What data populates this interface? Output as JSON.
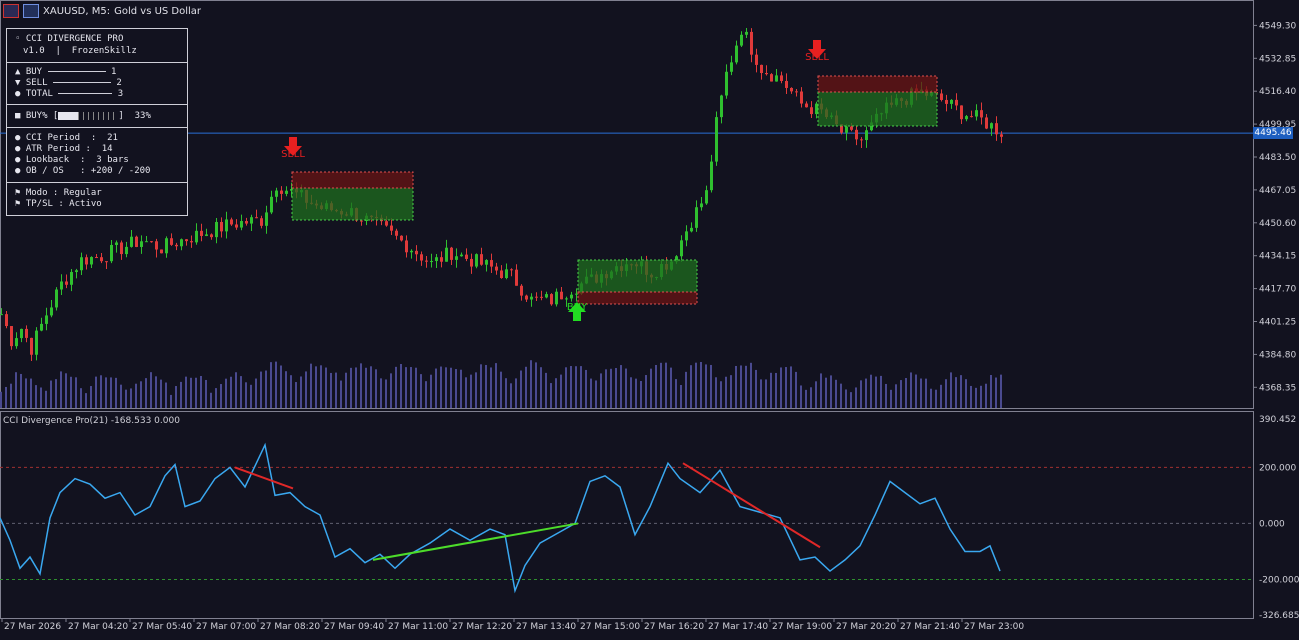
{
  "window": {
    "symbol": "XAUUSD, M5:",
    "description": "Gold vs US Dollar"
  },
  "panel": {
    "name": "CCI DIVERGENCE PRO",
    "version": "v1.0  |  FrozenSkillz",
    "buy_label": "▲ BUY",
    "buy_count": "1",
    "sell_label": "▼ SELL",
    "sell_count": "2",
    "total_label": "● TOTAL",
    "total_count": "3",
    "buy_pct_label": "■ BUY%",
    "buy_pct_value": "33%",
    "buy_pct": 0.33,
    "cci_period_label": "● CCI Period",
    "cci_period": "21",
    "atr_period_label": "● ATR Period",
    "atr_period": "14",
    "lookback_label": "● Lookback",
    "lookback": "3 bars",
    "obos_label": "● OB / OS",
    "obos": "+200 / -200",
    "modo": "⚑ Modo : Regular",
    "tpsl": "⚑ TP/SL : Activo"
  },
  "price_axis": {
    "labels": [
      "4549.30",
      "4532.85",
      "4516.40",
      "4499.95",
      "4483.50",
      "4467.05",
      "4450.60",
      "4434.15",
      "4417.70",
      "4401.25",
      "4384.80",
      "4368.35"
    ],
    "current": "4495.46"
  },
  "indicator": {
    "title": "CCI Divergence Pro(21) -168.533 0.000",
    "axis_labels": [
      "390.452",
      "200.000",
      "0.000",
      "-200.000",
      "-326.685"
    ]
  },
  "time_axis": {
    "labels": [
      "27 Mar 2026",
      "27 Mar 04:20",
      "27 Mar 05:40",
      "27 Mar 07:00",
      "27 Mar 08:20",
      "27 Mar 09:40",
      "27 Mar 11:00",
      "27 Mar 12:20",
      "27 Mar 13:40",
      "27 Mar 15:00",
      "27 Mar 16:20",
      "27 Mar 17:40",
      "27 Mar 19:00",
      "27 Mar 20:20",
      "27 Mar 21:40",
      "27 Mar 23:00"
    ]
  },
  "signals": [
    {
      "type": "SELL",
      "label": "SELL"
    },
    {
      "type": "BUY",
      "label": "BUY"
    },
    {
      "type": "SELL",
      "label": "SELL"
    }
  ],
  "colors": {
    "background": "#12121f",
    "bull": "#2fc02f",
    "bear": "#e03a3a",
    "cci": "#3aa8f0",
    "divergence_bull": "#4ddc2a",
    "divergence_bear": "#e02828",
    "price_line": "#2a6fd6",
    "volume": "#4a4a90"
  },
  "chart_data": [
    {
      "type": "candlestick",
      "title": "XAUUSD, M5",
      "ylim": [
        4360,
        4560
      ],
      "x_start": "27 Mar 2026 03:00",
      "x_end": "27 Mar 2026 23:55",
      "x_step_minutes": 5,
      "close_path_anchors": [
        [
          0,
          4405
        ],
        [
          10,
          4392
        ],
        [
          20,
          4398
        ],
        [
          30,
          4388
        ],
        [
          45,
          4405
        ],
        [
          60,
          4420
        ],
        [
          80,
          4432
        ],
        [
          100,
          4434
        ],
        [
          120,
          4438
        ],
        [
          140,
          4442
        ],
        [
          160,
          4438
        ],
        [
          180,
          4442
        ],
        [
          205,
          4446
        ],
        [
          230,
          4450
        ],
        [
          260,
          4452
        ],
        [
          275,
          4470
        ],
        [
          290,
          4466
        ],
        [
          320,
          4458
        ],
        [
          350,
          4456
        ],
        [
          380,
          4448
        ],
        [
          410,
          4438
        ],
        [
          430,
          4430
        ],
        [
          450,
          4436
        ],
        [
          480,
          4430
        ],
        [
          510,
          4424
        ],
        [
          530,
          4412
        ],
        [
          550,
          4412
        ],
        [
          570,
          4418
        ],
        [
          590,
          4422
        ],
        [
          610,
          4428
        ],
        [
          630,
          4432
        ],
        [
          650,
          4426
        ],
        [
          670,
          4432
        ],
        [
          690,
          4452
        ],
        [
          705,
          4465
        ],
        [
          715,
          4500
        ],
        [
          725,
          4525
        ],
        [
          740,
          4548
        ],
        [
          760,
          4528
        ],
        [
          780,
          4522
        ],
        [
          800,
          4510
        ],
        [
          820,
          4506
        ],
        [
          840,
          4496
        ],
        [
          860,
          4492
        ],
        [
          880,
          4505
        ],
        [
          900,
          4512
        ],
        [
          920,
          4516
        ],
        [
          940,
          4512
        ],
        [
          960,
          4506
        ],
        [
          980,
          4502
        ],
        [
          1000,
          4496
        ]
      ],
      "volume_visible": true
    },
    {
      "type": "line",
      "title": "CCI Divergence Pro(21) -168.533 0.000",
      "ylim": [
        -326.685,
        390.452
      ],
      "levels": [
        200,
        0,
        -200
      ],
      "series": [
        {
          "name": "CCI Divergence Pro(21)",
          "points": [
            [
              0,
              20
            ],
            [
              10,
              -60
            ],
            [
              20,
              -160
            ],
            [
              30,
              -120
            ],
            [
              40,
              -180
            ],
            [
              50,
              20
            ],
            [
              60,
              110
            ],
            [
              75,
              160
            ],
            [
              90,
              140
            ],
            [
              105,
              90
            ],
            [
              120,
              110
            ],
            [
              135,
              30
            ],
            [
              150,
              60
            ],
            [
              165,
              170
            ],
            [
              175,
              210
            ],
            [
              185,
              60
            ],
            [
              200,
              80
            ],
            [
              215,
              160
            ],
            [
              230,
              200
            ],
            [
              245,
              130
            ],
            [
              265,
              280
            ],
            [
              275,
              100
            ],
            [
              290,
              110
            ],
            [
              305,
              60
            ],
            [
              320,
              30
            ],
            [
              335,
              -120
            ],
            [
              350,
              -90
            ],
            [
              365,
              -140
            ],
            [
              380,
              -110
            ],
            [
              395,
              -160
            ],
            [
              410,
              -110
            ],
            [
              430,
              -70
            ],
            [
              450,
              -20
            ],
            [
              470,
              -60
            ],
            [
              490,
              -20
            ],
            [
              505,
              -40
            ],
            [
              515,
              -240
            ],
            [
              525,
              -150
            ],
            [
              540,
              -70
            ],
            [
              560,
              -30
            ],
            [
              575,
              0
            ],
            [
              590,
              150
            ],
            [
              605,
              170
            ],
            [
              620,
              130
            ],
            [
              635,
              -40
            ],
            [
              650,
              60
            ],
            [
              668,
              215
            ],
            [
              680,
              160
            ],
            [
              700,
              110
            ],
            [
              720,
              190
            ],
            [
              740,
              60
            ],
            [
              760,
              40
            ],
            [
              780,
              20
            ],
            [
              800,
              -130
            ],
            [
              815,
              -120
            ],
            [
              830,
              -170
            ],
            [
              845,
              -130
            ],
            [
              860,
              -80
            ],
            [
              875,
              30
            ],
            [
              890,
              150
            ],
            [
              905,
              110
            ],
            [
              920,
              70
            ],
            [
              935,
              90
            ],
            [
              950,
              -20
            ],
            [
              965,
              -100
            ],
            [
              980,
              -100
            ],
            [
              990,
              -80
            ],
            [
              1000,
              -170
            ]
          ]
        }
      ],
      "divergences": [
        {
          "kind": "bearish",
          "from": [
            235,
            200
          ],
          "to": [
            293,
            125
          ]
        },
        {
          "kind": "bullish",
          "from": [
            373,
            -130
          ],
          "to": [
            578,
            0
          ]
        },
        {
          "kind": "bearish",
          "from": [
            683,
            215
          ],
          "to": [
            820,
            -85
          ]
        }
      ]
    }
  ]
}
